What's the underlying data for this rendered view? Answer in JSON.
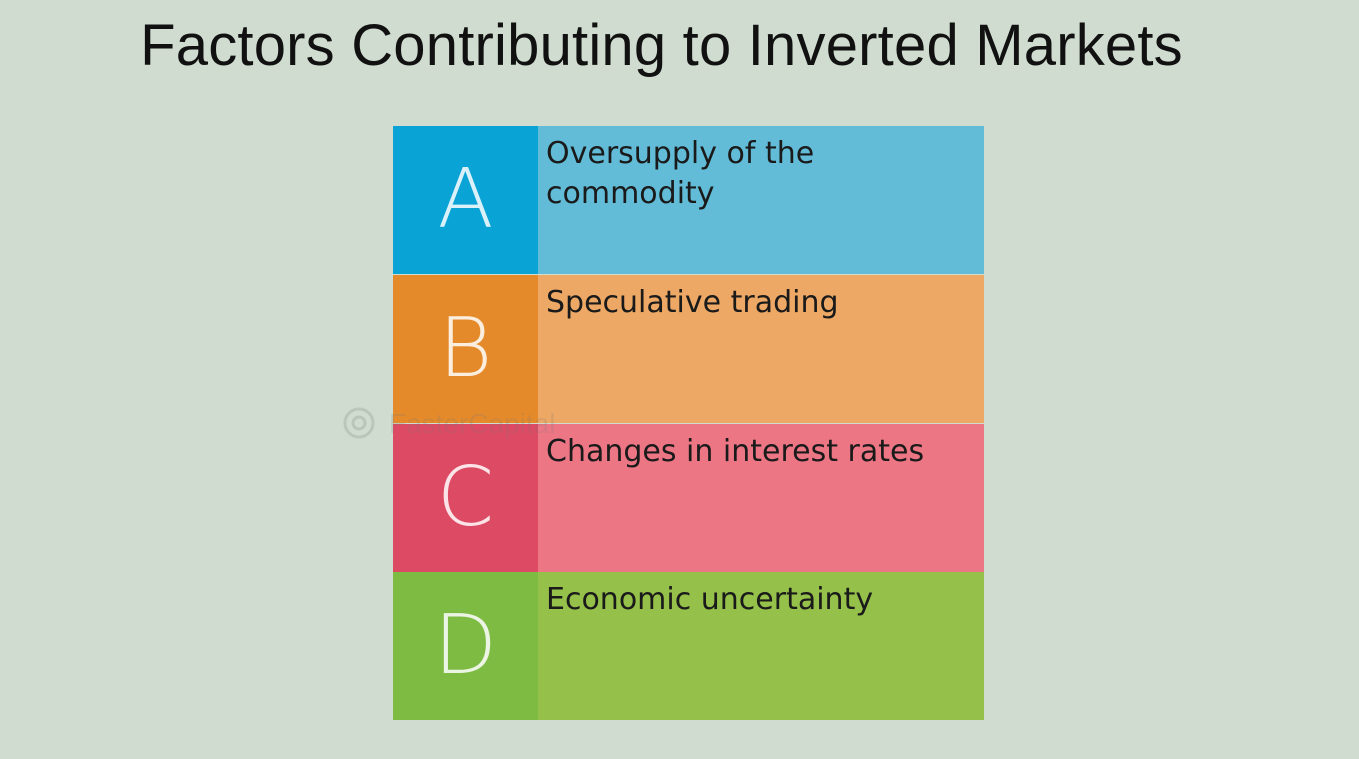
{
  "title": "Factors Contributing to Inverted Markets",
  "watermark": "FasterCapital",
  "factors": [
    {
      "letter": "A",
      "text": "Oversupply of the commodity",
      "letter_color": "#0aa3d6",
      "text_color": "#62bcd8"
    },
    {
      "letter": "B",
      "text": "Speculative trading",
      "letter_color": "#e58a2a",
      "text_color": "#eda865"
    },
    {
      "letter": "C",
      "text": "Changes in interest rates",
      "letter_color": "#dd4a63",
      "text_color": "#ed7685"
    },
    {
      "letter": "D",
      "text": "Economic uncertainty",
      "letter_color": "#7dbb43",
      "text_color": "#95c04a"
    }
  ]
}
